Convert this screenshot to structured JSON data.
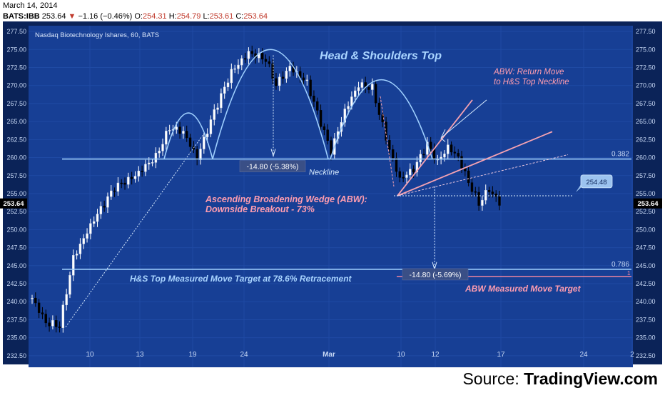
{
  "header": {
    "date": "March 14, 2014",
    "symbol": "BATS:IBB",
    "last": "253.64",
    "change": "−1.16 (−0.46%)",
    "open_label": "O:",
    "open": "254.31",
    "high_label": "H:",
    "high": "254.79",
    "low_label": "L:",
    "low": "253.61",
    "close_label": "C:",
    "close": "253.64"
  },
  "source": {
    "label": "Source:",
    "name": "TradingView.com"
  },
  "colors": {
    "background": "#173f95",
    "frame": "#0b2358",
    "pattern": "#9fd0ff",
    "wedge": "#f7a3b2",
    "annotation_pink": "#ff9db0",
    "annotation_blue": "#a9d4ff",
    "candle_up": "#ffffff",
    "candle_down": "#000000"
  },
  "chart_data": {
    "type": "candlestick",
    "title": "Nasdaq Biotechnology Ishares, 60, BATS",
    "x_ticks": [
      "10",
      "13",
      "19",
      "24",
      "Mar",
      "10",
      "12",
      "17",
      "24",
      "2"
    ],
    "y_ticks": [
      "232.50",
      "235.00",
      "237.50",
      "240.00",
      "242.50",
      "245.00",
      "247.50",
      "250.00",
      "252.50",
      "255.00",
      "257.50",
      "260.00",
      "262.50",
      "265.00",
      "267.50",
      "270.00",
      "272.50",
      "275.00",
      "277.50"
    ],
    "ylim": [
      230.9,
      278.3
    ],
    "last_price_label": "253.64",
    "fib_levels": [
      {
        "label": "0.382",
        "value": 259.8
      },
      {
        "label": "0.786",
        "value": 244.5
      }
    ],
    "callout_value": "254.48",
    "target_flag": "1",
    "annotations": {
      "pattern_title": "Head & Shoulders Top",
      "neckline": "Neckline",
      "measure_1": "-14.80 (-5.38%)",
      "measure_2": "-14.80 (-5.69%)",
      "abw_line1": "Ascending Broadening Wedge (ABW):",
      "abw_line2": "Downside Breakout - 73%",
      "return_line1": "ABW: Return Move",
      "return_line2": "to H&S Top Neckline",
      "hs_target": "H&S Top Measured Move Target at 78.6% Retracement",
      "abw_target": "ABW Measured Move Target"
    },
    "key_points": [
      {
        "t": 0,
        "close": 240.5
      },
      {
        "t": 4,
        "close": 237.0
      },
      {
        "t": 8,
        "close": 236.5
      },
      {
        "t": 12,
        "close": 246.0
      },
      {
        "t": 18,
        "close": 251.5
      },
      {
        "t": 24,
        "close": 256.0
      },
      {
        "t": 30,
        "close": 257.5
      },
      {
        "t": 36,
        "close": 260.0
      },
      {
        "t": 40,
        "close": 264.0
      },
      {
        "t": 44,
        "close": 263.5
      },
      {
        "t": 48,
        "close": 260.0
      },
      {
        "t": 53,
        "close": 266.5
      },
      {
        "t": 58,
        "close": 272.0
      },
      {
        "t": 63,
        "close": 274.5
      },
      {
        "t": 68,
        "close": 273.5
      },
      {
        "t": 71,
        "close": 270.0
      },
      {
        "t": 75,
        "close": 272.5
      },
      {
        "t": 80,
        "close": 270.5
      },
      {
        "t": 84,
        "close": 265.0
      },
      {
        "t": 87,
        "close": 261.0
      },
      {
        "t": 91,
        "close": 266.5
      },
      {
        "t": 95,
        "close": 270.0
      },
      {
        "t": 99,
        "close": 269.5
      },
      {
        "t": 101,
        "close": 266.0
      },
      {
        "t": 104,
        "close": 261.0
      },
      {
        "t": 107,
        "close": 257.0
      },
      {
        "t": 111,
        "close": 258.5
      },
      {
        "t": 115,
        "close": 262.0
      },
      {
        "t": 118,
        "close": 259.5
      },
      {
        "t": 121,
        "close": 261.5
      },
      {
        "t": 124,
        "close": 260.0
      },
      {
        "t": 127,
        "close": 256.5
      },
      {
        "t": 130,
        "close": 253.5
      },
      {
        "t": 133,
        "close": 255.5
      },
      {
        "t": 136,
        "close": 253.64
      }
    ]
  }
}
